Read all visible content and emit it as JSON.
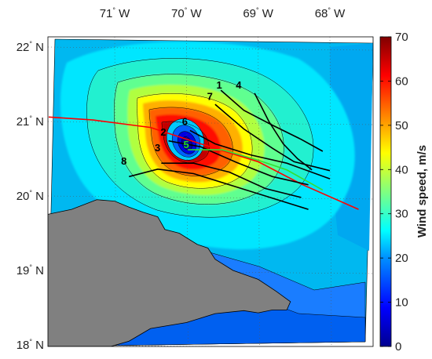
{
  "chart_data": {
    "type": "heatmap",
    "colorbar_title": "Wind speed, m/s",
    "colorbar_range": [
      0,
      70
    ],
    "colorbar_ticks": [
      0,
      10,
      20,
      30,
      40,
      50,
      60,
      70
    ],
    "lon_ticks": [
      {
        "value": -71,
        "deg": "71",
        "hemi": "W"
      },
      {
        "value": -70,
        "deg": "70",
        "hemi": "W"
      },
      {
        "value": -69,
        "deg": "69",
        "hemi": "W"
      },
      {
        "value": -68,
        "deg": "68",
        "hemi": "W"
      }
    ],
    "lat_ticks": [
      {
        "value": 22,
        "deg": "22",
        "hemi": "N"
      },
      {
        "value": 21,
        "deg": "21",
        "hemi": "N"
      },
      {
        "value": 20,
        "deg": "20",
        "hemi": "N"
      },
      {
        "value": 19,
        "deg": "19",
        "hemi": "N"
      },
      {
        "value": 18,
        "deg": "18",
        "hemi": "N"
      }
    ],
    "storm_center": {
      "lon": -69.98,
      "lat": 20.75,
      "max_wind": 62
    },
    "storm_track": [
      [
        -71.92,
        21.06
      ],
      [
        -71.3,
        21.02
      ],
      [
        -70.5,
        20.92
      ],
      [
        -69.8,
        20.7
      ],
      [
        -69.0,
        20.46
      ],
      [
        -68.4,
        20.16
      ],
      [
        -67.6,
        19.82
      ]
    ],
    "tracks": [
      {
        "label": "1",
        "color": "#000000",
        "label_pos": [
          -69.52,
          21.42
        ],
        "points": [
          [
            -69.52,
            21.42
          ],
          [
            -69.2,
            21.15
          ],
          [
            -68.8,
            20.95
          ],
          [
            -68.4,
            20.76
          ],
          [
            -68.1,
            20.6
          ]
        ]
      },
      {
        "label": "4",
        "color": "#000000",
        "label_pos": [
          -69.25,
          21.42
        ],
        "points": [
          [
            -69.05,
            21.38
          ],
          [
            -68.85,
            21.0
          ],
          [
            -68.65,
            20.7
          ],
          [
            -68.45,
            20.5
          ],
          [
            -68.25,
            20.35
          ]
        ]
      },
      {
        "label": "7",
        "color": "#000000",
        "label_pos": [
          -69.65,
          21.27
        ],
        "points": [
          [
            -69.6,
            21.23
          ],
          [
            -69.2,
            20.9
          ],
          [
            -68.8,
            20.64
          ],
          [
            -68.5,
            20.46
          ],
          [
            -68.0,
            20.34
          ]
        ]
      },
      {
        "label": "6",
        "color": "#000000",
        "label_pos": [
          -70.0,
          20.93
        ],
        "points": [
          [
            -69.95,
            20.88
          ],
          [
            -69.6,
            20.7
          ],
          [
            -69.1,
            20.55
          ],
          [
            -68.6,
            20.44
          ],
          [
            -68.0,
            20.23
          ]
        ]
      },
      {
        "label": "2",
        "color": "#000000",
        "label_pos": [
          -70.3,
          20.79
        ],
        "points": [
          [
            -70.25,
            20.74
          ],
          [
            -69.8,
            20.66
          ],
          [
            -69.3,
            20.45
          ],
          [
            -68.8,
            20.26
          ],
          [
            -68.3,
            20.15
          ]
        ]
      },
      {
        "label": "5",
        "color": "#33dd33",
        "label_pos": [
          -69.98,
          20.62
        ],
        "points": [
          [
            -69.98,
            20.62
          ],
          [
            -69.5,
            20.62
          ],
          [
            -69.0,
            20.48
          ],
          [
            -68.6,
            20.35
          ],
          [
            -68.1,
            20.08
          ]
        ]
      },
      {
        "label": "3",
        "color": "#000000",
        "label_pos": [
          -70.38,
          20.58
        ],
        "points": [
          [
            -70.35,
            20.44
          ],
          [
            -69.9,
            20.44
          ],
          [
            -69.4,
            20.32
          ],
          [
            -68.9,
            20.1
          ],
          [
            -68.4,
            19.98
          ]
        ]
      },
      {
        "label": "8",
        "color": "#000000",
        "label_pos": [
          -70.85,
          20.4
        ],
        "points": [
          [
            -70.8,
            20.26
          ],
          [
            -70.4,
            20.36
          ],
          [
            -69.9,
            20.3
          ],
          [
            -69.4,
            20.15
          ],
          [
            -68.9,
            20.0
          ],
          [
            -68.3,
            19.82
          ]
        ]
      }
    ],
    "land_polygon": [
      [
        -71.95,
        19.75
      ],
      [
        -71.6,
        19.82
      ],
      [
        -71.25,
        19.95
      ],
      [
        -71.0,
        19.93
      ],
      [
        -70.8,
        19.85
      ],
      [
        -70.6,
        19.78
      ],
      [
        -70.4,
        19.72
      ],
      [
        -70.3,
        19.55
      ],
      [
        -70.1,
        19.5
      ],
      [
        -69.85,
        19.35
      ],
      [
        -69.7,
        19.3
      ],
      [
        -69.6,
        19.15
      ],
      [
        -69.35,
        19.0
      ],
      [
        -69.0,
        18.88
      ],
      [
        -68.75,
        18.72
      ],
      [
        -68.55,
        18.58
      ],
      [
        -68.6,
        18.47
      ],
      [
        -68.8,
        18.47
      ],
      [
        -69.0,
        18.43
      ],
      [
        -69.2,
        18.46
      ],
      [
        -69.6,
        18.42
      ],
      [
        -70.0,
        18.3
      ],
      [
        -70.5,
        18.22
      ],
      [
        -70.8,
        18.05
      ],
      [
        -71.05,
        17.98
      ],
      [
        -71.95,
        17.98
      ]
    ]
  }
}
